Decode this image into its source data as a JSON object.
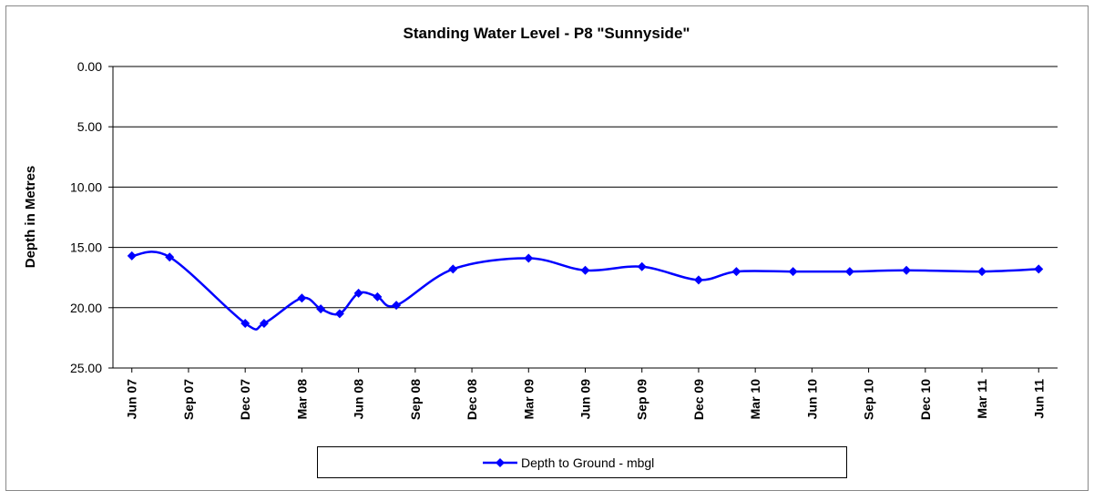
{
  "chart_data": {
    "type": "line",
    "title": "Standing Water Level - P8 \"Sunnyside\"",
    "y_label": "Depth in Metres",
    "x": [
      "2007-06",
      "2007-08",
      "2007-12",
      "2008-01",
      "2008-03",
      "2008-04",
      "2008-05",
      "2008-06",
      "2008-07",
      "2008-08",
      "2008-11",
      "2009-03",
      "2009-06",
      "2009-09",
      "2009-12",
      "2010-02",
      "2010-05",
      "2010-08",
      "2010-11",
      "2011-03",
      "2011-06"
    ],
    "series": [
      {
        "name": "Depth to Ground - mbgl",
        "color": "#0000ff",
        "values": [
          15.7,
          15.8,
          21.3,
          21.3,
          19.2,
          20.1,
          20.5,
          18.8,
          19.1,
          19.8,
          16.8,
          15.9,
          16.9,
          16.6,
          17.7,
          17.0,
          17.0,
          17.0,
          16.9,
          17.0,
          16.8
        ]
      }
    ],
    "xlim": [
      "2007-05",
      "2011-07"
    ],
    "xticks": [
      {
        "value": "2007-06",
        "label": "Jun 07"
      },
      {
        "value": "2007-09",
        "label": "Sep 07"
      },
      {
        "value": "2007-12",
        "label": "Dec 07"
      },
      {
        "value": "2008-03",
        "label": "Mar 08"
      },
      {
        "value": "2008-06",
        "label": "Jun 08"
      },
      {
        "value": "2008-09",
        "label": "Sep 08"
      },
      {
        "value": "2008-12",
        "label": "Dec 08"
      },
      {
        "value": "2009-03",
        "label": "Mar 09"
      },
      {
        "value": "2009-06",
        "label": "Jun 09"
      },
      {
        "value": "2009-09",
        "label": "Sep 09"
      },
      {
        "value": "2009-12",
        "label": "Dec 09"
      },
      {
        "value": "2010-03",
        "label": "Mar 10"
      },
      {
        "value": "2010-06",
        "label": "Jun 10"
      },
      {
        "value": "2010-09",
        "label": "Sep 10"
      },
      {
        "value": "2010-12",
        "label": "Dec 10"
      },
      {
        "value": "2011-03",
        "label": "Mar 11"
      },
      {
        "value": "2011-06",
        "label": "Jun 11"
      }
    ],
    "ylim": [
      0,
      25
    ],
    "y_inverted": true,
    "yticks": [
      {
        "value": 0,
        "label": "0.00"
      },
      {
        "value": 5,
        "label": "5.00"
      },
      {
        "value": 10,
        "label": "10.00"
      },
      {
        "value": 15,
        "label": "15.00"
      },
      {
        "value": 20,
        "label": "20.00"
      },
      {
        "value": 25,
        "label": "25.00"
      }
    ],
    "grid": true,
    "legend": "bottom"
  }
}
